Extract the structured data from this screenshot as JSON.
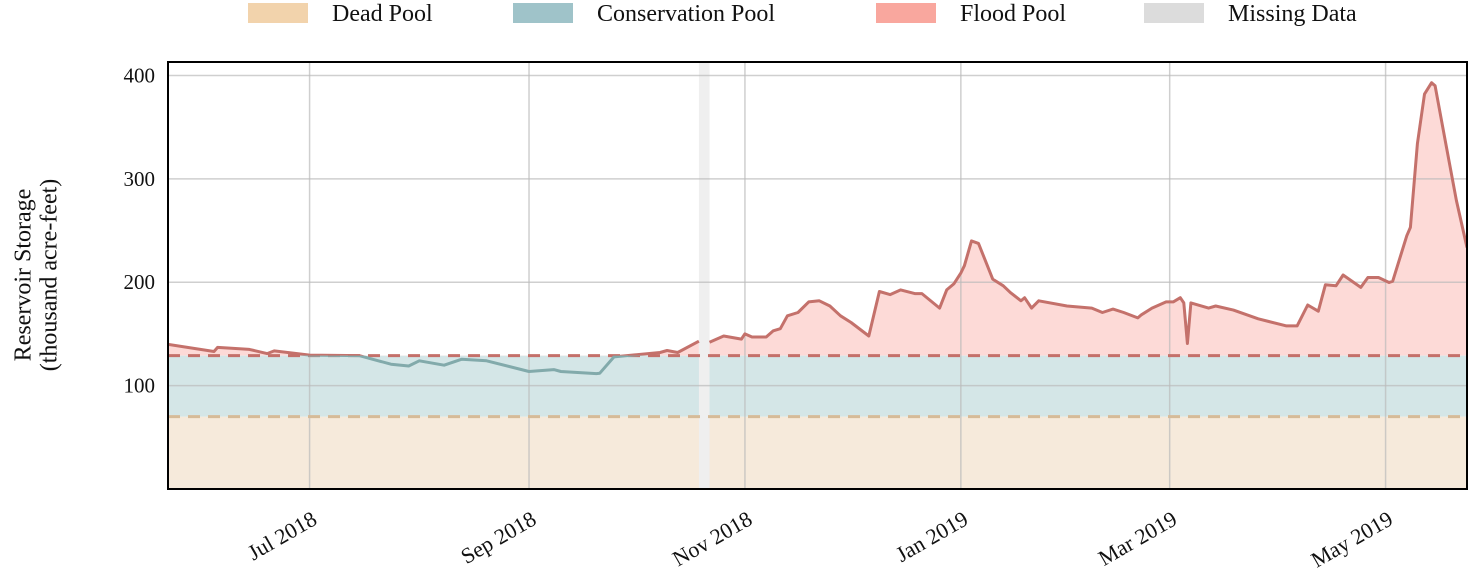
{
  "chart_data": {
    "type": "area",
    "title": "",
    "xlabel": "",
    "ylabel_lines": [
      "Reservoir Storage",
      "(thousand acre-feet)"
    ],
    "xlim": [
      "2018-05-22",
      "2019-05-24"
    ],
    "ylim": [
      0,
      413
    ],
    "grid": true,
    "legend_placement": "top (outside)",
    "y_ticks": [
      100,
      200,
      300,
      400
    ],
    "x_ticks": [
      {
        "date": "2018-07-01",
        "label": "Jul 2018"
      },
      {
        "date": "2018-09-01",
        "label": "Sep 2018"
      },
      {
        "date": "2018-11-01",
        "label": "Nov 2018"
      },
      {
        "date": "2019-01-01",
        "label": "Jan 2019"
      },
      {
        "date": "2019-03-01",
        "label": "Mar 2019"
      },
      {
        "date": "2019-05-01",
        "label": "May 2019"
      }
    ],
    "legend": [
      {
        "key": "dead",
        "label": "Dead Pool",
        "color": "#f2d3ac"
      },
      {
        "key": "conservation",
        "label": "Conservation Pool",
        "color": "#9fc3c9"
      },
      {
        "key": "flood",
        "label": "Flood Pool",
        "color": "#f9a79e"
      },
      {
        "key": "missing",
        "label": "Missing Data",
        "color": "#dcdcdc"
      }
    ],
    "pools": {
      "dead_pool_top": 70,
      "conservation_pool_top": 129
    },
    "missing_data": [
      [
        "2018-10-19",
        "2018-10-22"
      ]
    ],
    "colors": {
      "dead_fill": "#f6eadb",
      "conservation_fill": "#d4e6e7",
      "flood_fill": "#fddad7",
      "missing_band": "#efefef",
      "flood_line": "#c4716b",
      "conservation_line": "#82aaab",
      "dead_dash": "#d6bb98",
      "flood_dash": "#c4706a"
    },
    "series": [
      {
        "segments": [
          [
            [
              "2018-05-22",
              140
            ],
            [
              "2018-06-04",
              133
            ],
            [
              "2018-06-05",
              137
            ],
            [
              "2018-06-14",
              135
            ],
            [
              "2018-06-19",
              131
            ],
            [
              "2018-06-21",
              133.6
            ],
            [
              "2018-07-01",
              129.5
            ],
            [
              "2018-07-15",
              129
            ],
            [
              "2018-07-24",
              120.7
            ],
            [
              "2018-07-29",
              119
            ],
            [
              "2018-08-01",
              124
            ],
            [
              "2018-08-08",
              119.7
            ],
            [
              "2018-08-13",
              125.5
            ],
            [
              "2018-08-20",
              124
            ],
            [
              "2018-09-01",
              113.6
            ],
            [
              "2018-09-08",
              115.5
            ],
            [
              "2018-09-10",
              113.6
            ],
            [
              "2018-09-20",
              111.6
            ],
            [
              "2018-09-21",
              112
            ],
            [
              "2018-09-25",
              127.8
            ],
            [
              "2018-10-08",
              132
            ],
            [
              "2018-10-10",
              134
            ],
            [
              "2018-10-13",
              132
            ],
            [
              "2018-10-19",
              143
            ]
          ],
          [
            [
              "2018-10-22",
              142
            ],
            [
              "2018-10-26",
              148
            ],
            [
              "2018-10-31",
              145
            ],
            [
              "2018-11-01",
              150
            ],
            [
              "2018-11-03",
              147
            ],
            [
              "2018-11-07",
              147
            ],
            [
              "2018-11-09",
              153
            ],
            [
              "2018-11-11",
              155
            ],
            [
              "2018-11-13",
              167.5
            ],
            [
              "2018-11-16",
              170.7
            ],
            [
              "2018-11-19",
              181
            ],
            [
              "2018-11-22",
              182
            ],
            [
              "2018-11-25",
              177
            ],
            [
              "2018-11-28",
              167.5
            ],
            [
              "2018-12-01",
              161
            ],
            [
              "2018-12-06",
              148
            ],
            [
              "2018-12-09",
              191
            ],
            [
              "2018-12-12",
              188
            ],
            [
              "2018-12-15",
              192.6
            ],
            [
              "2018-12-19",
              189
            ],
            [
              "2018-12-21",
              189
            ],
            [
              "2018-12-26",
              175
            ],
            [
              "2018-12-28",
              192.6
            ],
            [
              "2018-12-30",
              198.4
            ],
            [
              "2019-01-01",
              209
            ],
            [
              "2019-01-02",
              216
            ],
            [
              "2019-01-04",
              240
            ],
            [
              "2019-01-06",
              237.5
            ],
            [
              "2019-01-10",
              203
            ],
            [
              "2019-01-13",
              196.5
            ],
            [
              "2019-01-15",
              190
            ],
            [
              "2019-01-18",
              182
            ],
            [
              "2019-01-19",
              185
            ],
            [
              "2019-01-21",
              175
            ],
            [
              "2019-01-23",
              182
            ],
            [
              "2019-01-31",
              177
            ],
            [
              "2019-02-07",
              175
            ],
            [
              "2019-02-10",
              170.7
            ],
            [
              "2019-02-13",
              174
            ],
            [
              "2019-02-16",
              170.7
            ],
            [
              "2019-02-20",
              165.5
            ],
            [
              "2019-02-21",
              168.5
            ],
            [
              "2019-02-24",
              175
            ],
            [
              "2019-02-28",
              181
            ],
            [
              "2019-03-02",
              181
            ],
            [
              "2019-03-04",
              185
            ],
            [
              "2019-03-05",
              180
            ],
            [
              "2019-03-06",
              140.7
            ],
            [
              "2019-03-07",
              180
            ],
            [
              "2019-03-12",
              175
            ],
            [
              "2019-03-14",
              177
            ],
            [
              "2019-03-19",
              173
            ],
            [
              "2019-03-26",
              164.6
            ],
            [
              "2019-03-29",
              162
            ],
            [
              "2019-04-03",
              157.8
            ],
            [
              "2019-04-06",
              157.8
            ],
            [
              "2019-04-09",
              178
            ],
            [
              "2019-04-12",
              172
            ],
            [
              "2019-04-14",
              197.5
            ],
            [
              "2019-04-17",
              196.5
            ],
            [
              "2019-04-19",
              207
            ],
            [
              "2019-04-24",
              195
            ],
            [
              "2019-04-26",
              204.6
            ],
            [
              "2019-04-29",
              204.6
            ],
            [
              "2019-05-02",
              199.7
            ],
            [
              "2019-05-03",
              201
            ],
            [
              "2019-05-07",
              245
            ],
            [
              "2019-05-08",
              253
            ],
            [
              "2019-05-10",
              334
            ],
            [
              "2019-05-12",
              382
            ],
            [
              "2019-05-14",
              393
            ],
            [
              "2019-05-15",
              390
            ],
            [
              "2019-05-18",
              334
            ],
            [
              "2019-05-21",
              279
            ],
            [
              "2019-05-24",
              233.6
            ]
          ]
        ]
      }
    ]
  }
}
